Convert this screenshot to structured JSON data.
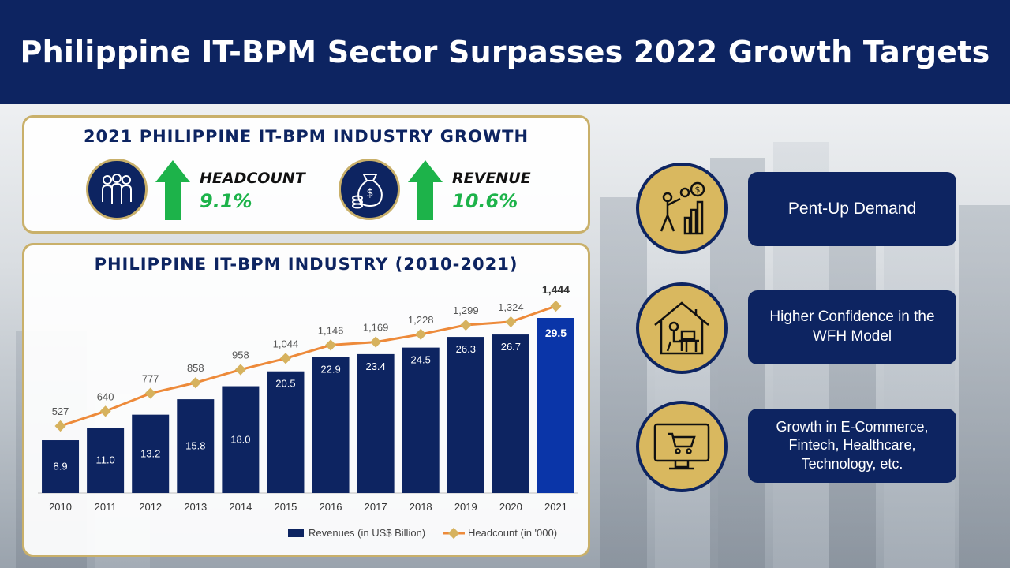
{
  "title": "Philippine IT-BPM Sector Surpasses 2022 Growth Targets",
  "growth_panel": {
    "title": "2021 PHILIPPINE IT-BPM INDUSTRY GROWTH",
    "headcount": {
      "label": "HEADCOUNT",
      "value": "9.1%",
      "icon": "people-icon",
      "arrow": "up-arrow-icon"
    },
    "revenue": {
      "label": "REVENUE",
      "value": "10.6%",
      "icon": "money-bag-icon",
      "arrow": "up-arrow-icon"
    }
  },
  "chart_panel": {
    "title": "PHILIPPINE IT-BPM INDUSTRY (2010-2021)"
  },
  "chart_data": {
    "type": "bar",
    "categories": [
      "2010",
      "2011",
      "2012",
      "2013",
      "2014",
      "2015",
      "2016",
      "2017",
      "2018",
      "2019",
      "2020",
      "2021"
    ],
    "series": [
      {
        "name": "Revenues (in US$ Billion)",
        "type": "bar",
        "values": [
          8.9,
          11.0,
          13.2,
          15.8,
          18.0,
          20.5,
          22.9,
          23.4,
          24.5,
          26.3,
          26.7,
          29.5
        ],
        "labels": [
          "8.9",
          "11.0",
          "13.2",
          "15.8",
          "18.0",
          "20.5",
          "22.9",
          "23.4",
          "24.5",
          "26.3",
          "26.7",
          "29.5"
        ],
        "color": "#0d2461",
        "highlight_color": "#0a35a8"
      },
      {
        "name": "Headcount (in '000)",
        "type": "line",
        "values": [
          527,
          640,
          777,
          858,
          958,
          1044,
          1146,
          1169,
          1228,
          1299,
          1324,
          1444
        ],
        "labels": [
          "527",
          "640",
          "777",
          "858",
          "958",
          "1,044",
          "1,146",
          "1,169",
          "1,228",
          "1,299",
          "1,324",
          "1,444"
        ],
        "color": "#ed8a3a",
        "marker_color": "#d6b25e"
      }
    ],
    "legend": "bottom-right",
    "grid": false
  },
  "drivers": [
    {
      "text": "Pent-Up Demand",
      "icon": "growth-chart-icon"
    },
    {
      "text": "Higher Confidence in the\nWFH Model",
      "icon": "work-from-home-icon"
    },
    {
      "text": "Growth in E-Commerce,\nFintech, Healthcare,\nTechnology, etc.",
      "icon": "ecommerce-cart-icon"
    }
  ]
}
